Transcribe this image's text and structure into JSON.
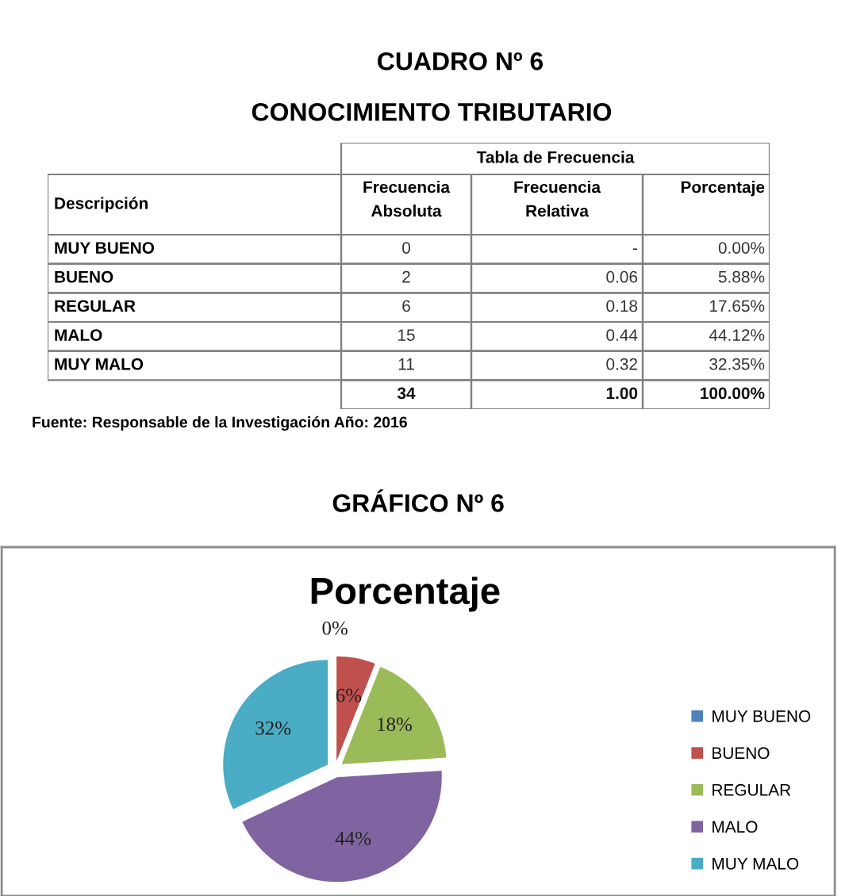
{
  "chart_data": [
    {
      "type": "other",
      "title": "CUADRO Nº 6",
      "subtitle": "CONOCIMIENTO TRIBUTARIO",
      "xlabel": "Tabla de Frecuencia",
      "ylabel": "Descripción",
      "categories": [
        "Frecuencia Absoluta",
        "Frecuencia Relativa",
        "Porcentaje"
      ],
      "y_categories": [
        "MUY BUENO",
        "BUENO",
        "REGULAR",
        "MALO",
        "MUY MALO",
        null
      ],
      "cell_labels": [
        [
          "0",
          "-",
          "0.00%"
        ],
        [
          "2",
          "0.06",
          "5.88%"
        ],
        [
          "6",
          "0.18",
          "17.65%"
        ],
        [
          "15",
          "0.44",
          "44.12%"
        ],
        [
          "11",
          "0.32",
          "32.35%"
        ],
        [
          "34",
          "1.00",
          "100.00%"
        ]
      ],
      "annotations": [
        "Fuente: Responsable de la Investigación Año: 2016"
      ]
    },
    {
      "type": "pie",
      "title": "GRÁFICO Nº 6",
      "subtitle": "Porcentaje",
      "categories": [
        "MUY BUENO",
        "BUENO",
        "REGULAR",
        "MALO",
        "MUY MALO"
      ],
      "values": [
        0,
        6,
        18,
        44,
        32
      ],
      "colors": [
        "#4f81bd",
        "#c0504d",
        "#9bbb59",
        "#8064a2",
        "#4bacc6"
      ],
      "value_labels": [
        "0%",
        "6%",
        "18%",
        "44%",
        "32%"
      ],
      "legend": "right"
    }
  ]
}
